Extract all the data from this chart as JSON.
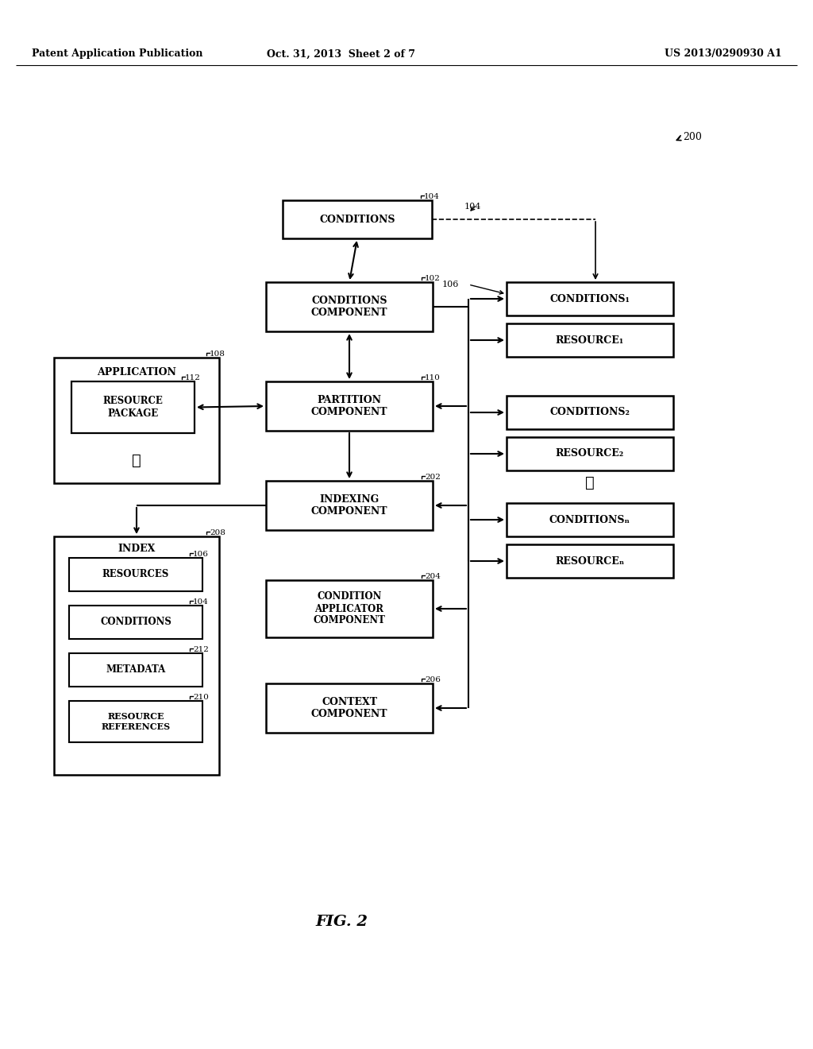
{
  "bg_color": "#ffffff",
  "header_left": "Patent Application Publication",
  "header_mid": "Oct. 31, 2013  Sheet 2 of 7",
  "header_right": "US 2013/0290930 A1",
  "fig_label": "FIG. 2"
}
